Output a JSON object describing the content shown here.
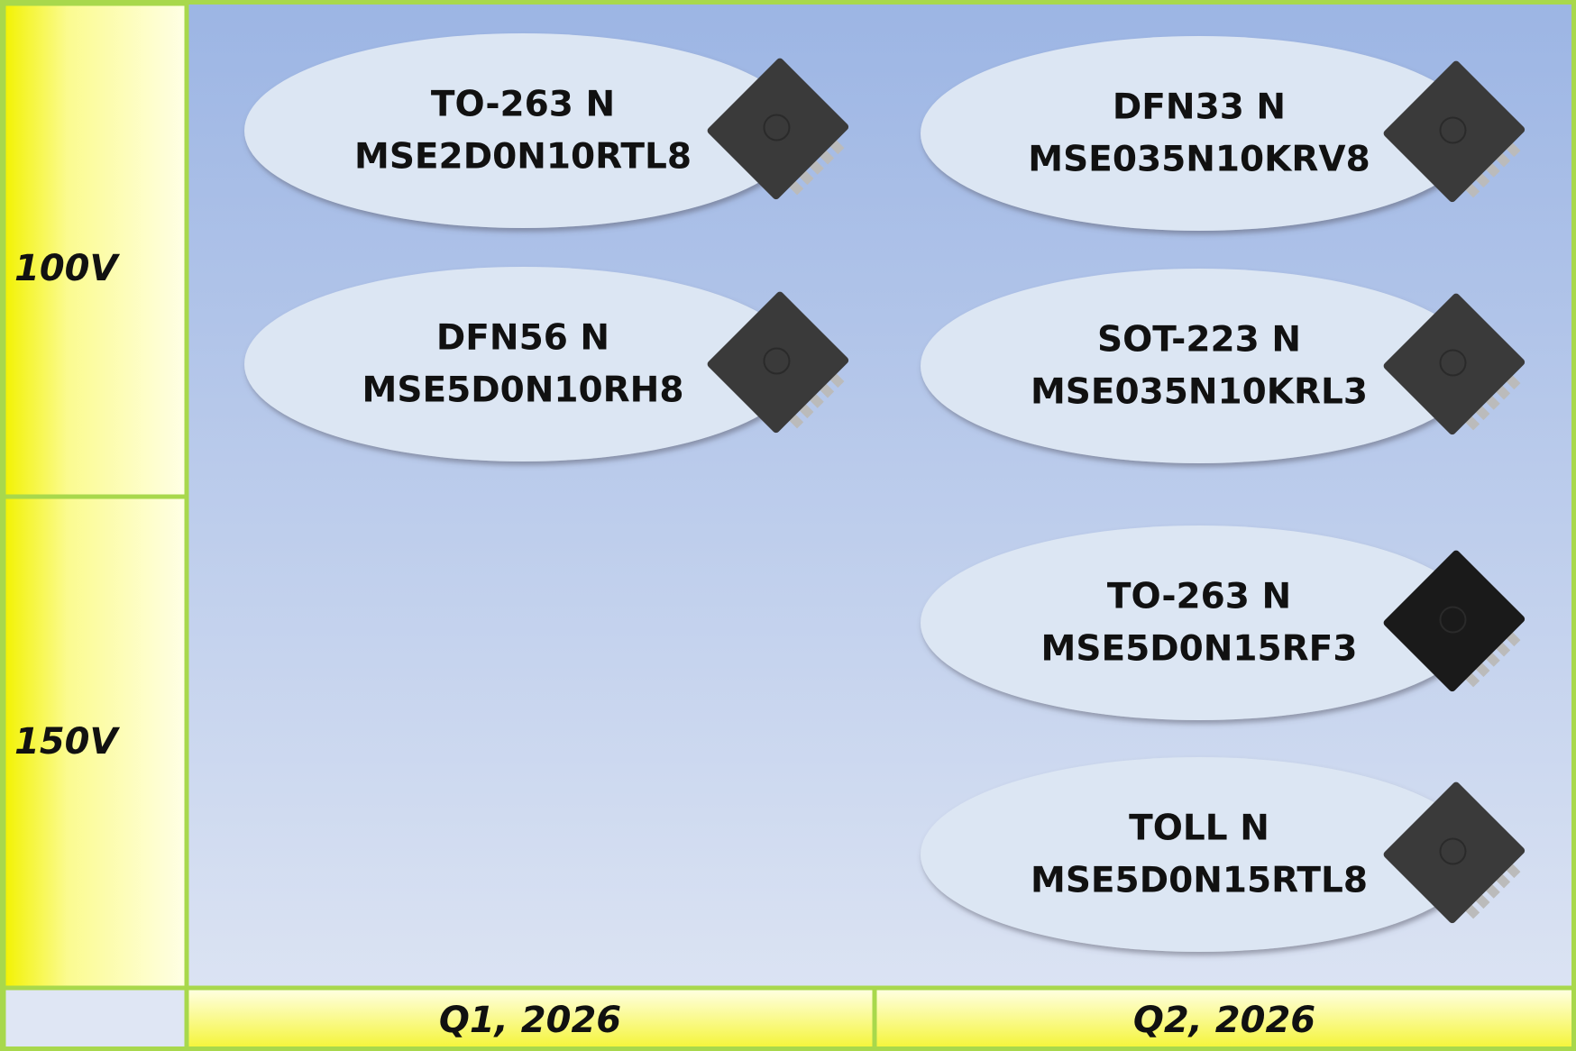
{
  "rows": [
    "100V",
    "150V"
  ],
  "columns": [
    "Q1, 2026",
    "Q2, 2026"
  ],
  "items": [
    {
      "package": "TO-263 N",
      "part": "MSE2D0N10RTL8"
    },
    {
      "package": "DFN33 N",
      "part": "MSE035N10KRV8"
    },
    {
      "package": "DFN56 N",
      "part": "MSE5D0N10RH8"
    },
    {
      "package": "SOT-223 N",
      "part": "MSE035N10KRL3"
    },
    {
      "package": "TO-263 N",
      "part": "MSE5D0N15RF3"
    },
    {
      "package": "TOLL N",
      "part": "MSE5D0N15RTL8"
    }
  ]
}
